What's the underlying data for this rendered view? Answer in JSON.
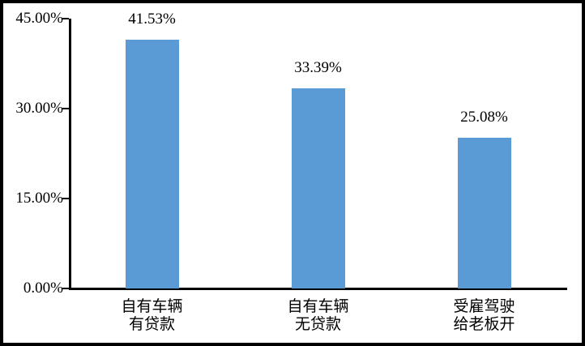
{
  "chart_data": {
    "type": "bar",
    "title": "",
    "xlabel": "",
    "ylabel": "",
    "categories": [
      "自有车辆\n有贷款",
      "自有车辆\n无贷款",
      "受雇驾驶\n给老板开"
    ],
    "values": [
      41.53,
      33.39,
      25.08
    ],
    "data_labels": [
      "41.53%",
      "33.39%",
      "25.08%"
    ],
    "yticks": [
      {
        "label": "45.00%",
        "value": 45
      },
      {
        "label": "30.00%",
        "value": 30
      },
      {
        "label": "15.00%",
        "value": 15
      },
      {
        "label": "0.00%",
        "value": 0
      }
    ],
    "ylim": [
      0,
      45
    ],
    "grid": false,
    "legend": false,
    "bar_color": "#5B9BD5",
    "axis_color": "#000000",
    "background_color": "#FFFFFF",
    "border_color": "#000000"
  }
}
